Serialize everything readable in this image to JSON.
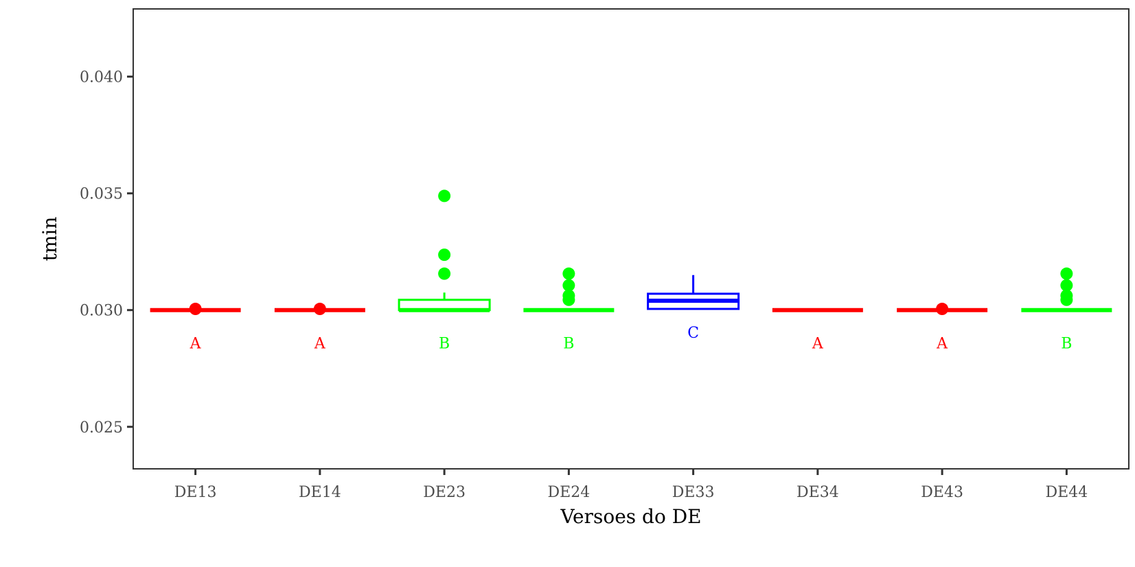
{
  "chart_data": {
    "type": "boxplot",
    "title": "",
    "xlabel": "Versoes do DE",
    "ylabel": "tmin",
    "ylim": [
      0.0232,
      0.0429
    ],
    "yticks": [
      0.025,
      0.03,
      0.035,
      0.04
    ],
    "ytick_labels": [
      "0.025",
      "0.030",
      "0.035",
      "0.040"
    ],
    "categories": [
      "DE13",
      "DE14",
      "DE23",
      "DE24",
      "DE33",
      "DE34",
      "DE43",
      "DE44"
    ],
    "grid": false,
    "legend": "none",
    "colors": {
      "A": "#ff0000",
      "B": "#00ff00",
      "C": "#0000ff",
      "axis": "#333333",
      "tick_text": "#4d4d4d"
    },
    "boxes": [
      {
        "category": "DE13",
        "group": "A",
        "min": 0.03,
        "q1": 0.03,
        "median": 0.03,
        "q3": 0.03,
        "max": 0.03,
        "outliers": [
          0.03005
        ]
      },
      {
        "category": "DE14",
        "group": "A",
        "min": 0.03,
        "q1": 0.03,
        "median": 0.03,
        "q3": 0.03,
        "max": 0.03,
        "outliers": [
          0.03005
        ]
      },
      {
        "category": "DE23",
        "group": "B",
        "min": 0.03,
        "q1": 0.03,
        "median": 0.03,
        "q3": 0.03044,
        "max": 0.03075,
        "outliers": [
          0.03156,
          0.03237,
          0.03489
        ]
      },
      {
        "category": "DE24",
        "group": "B",
        "min": 0.03,
        "q1": 0.03,
        "median": 0.03,
        "q3": 0.03,
        "max": 0.03,
        "outliers": [
          0.03044,
          0.03062,
          0.03106,
          0.03156
        ]
      },
      {
        "category": "DE33",
        "group": "C",
        "min": 0.03005,
        "q1": 0.03005,
        "median": 0.0304,
        "q3": 0.0307,
        "max": 0.0315,
        "outliers": []
      },
      {
        "category": "DE34",
        "group": "A",
        "min": 0.03,
        "q1": 0.03,
        "median": 0.03,
        "q3": 0.03,
        "max": 0.03,
        "outliers": []
      },
      {
        "category": "DE43",
        "group": "A",
        "min": 0.03,
        "q1": 0.03,
        "median": 0.03,
        "q3": 0.03,
        "max": 0.03,
        "outliers": [
          0.03005
        ]
      },
      {
        "category": "DE44",
        "group": "B",
        "min": 0.03,
        "q1": 0.03,
        "median": 0.03,
        "q3": 0.03,
        "max": 0.03,
        "outliers": [
          0.03044,
          0.03062,
          0.03106,
          0.03156
        ]
      }
    ],
    "annotations": [
      {
        "category": "DE13",
        "text": "A",
        "y": 0.0286
      },
      {
        "category": "DE14",
        "text": "A",
        "y": 0.0286
      },
      {
        "category": "DE23",
        "text": "B",
        "y": 0.0286
      },
      {
        "category": "DE24",
        "text": "B",
        "y": 0.0286
      },
      {
        "category": "DE33",
        "text": "C",
        "y": 0.02905
      },
      {
        "category": "DE34",
        "text": "A",
        "y": 0.0286
      },
      {
        "category": "DE43",
        "text": "A",
        "y": 0.0286
      },
      {
        "category": "DE44",
        "text": "B",
        "y": 0.0286
      }
    ]
  }
}
